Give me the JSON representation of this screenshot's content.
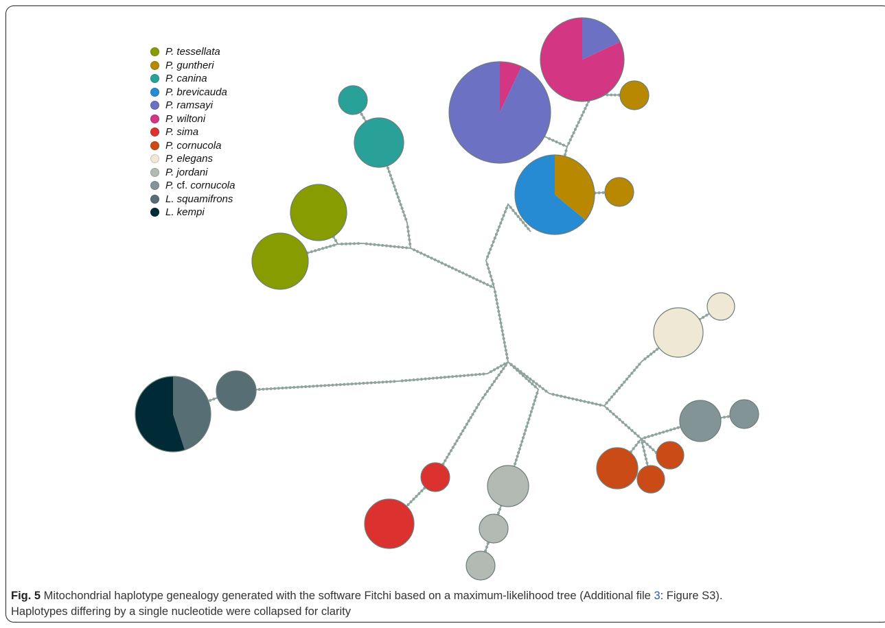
{
  "legend": [
    {
      "genus": "P.",
      "epithet": "tessellata",
      "color": "#869c00"
    },
    {
      "genus": "P.",
      "epithet": "guntheri",
      "color": "#b88900"
    },
    {
      "genus": "P.",
      "epithet": "canina",
      "color": "#2aa198"
    },
    {
      "genus": "P.",
      "epithet": "brevicauda",
      "color": "#268bd2"
    },
    {
      "genus": "P.",
      "epithet": "ramsayi",
      "color": "#6c71c4"
    },
    {
      "genus": "P.",
      "epithet": "wiltoni",
      "color": "#d33682"
    },
    {
      "genus": "P.",
      "epithet": "sima",
      "color": "#dc322f"
    },
    {
      "genus": "P.",
      "epithet": "cornucola",
      "color": "#cb4b16"
    },
    {
      "genus": "P.",
      "epithet": "elegans",
      "color": "#eee8d5"
    },
    {
      "genus": "P.",
      "epithet": "jordani",
      "color": "#b3b9b3"
    },
    {
      "genus": "P. cf.",
      "epithet": "cornucola",
      "color": "#839496"
    },
    {
      "genus": "L.",
      "epithet": "squamifrons",
      "color": "#586e75"
    },
    {
      "genus": "L.",
      "epithet": "kempi",
      "color": "#002b36"
    }
  ],
  "caption": {
    "fig_label": "Fig. 5",
    "text_before_link": " Mitochondrial haplotype genealogy generated with the software Fitchi based on a maximum-likelihood tree (Additional file ",
    "link_text": "3",
    "text_after_link": ": Figure S3).",
    "line2": "Haplotypes differing by a single nucleotide were collapsed for clarity"
  },
  "colors": {
    "edge": "#8fa39f",
    "node_stroke": "#6d7d7a"
  }
}
